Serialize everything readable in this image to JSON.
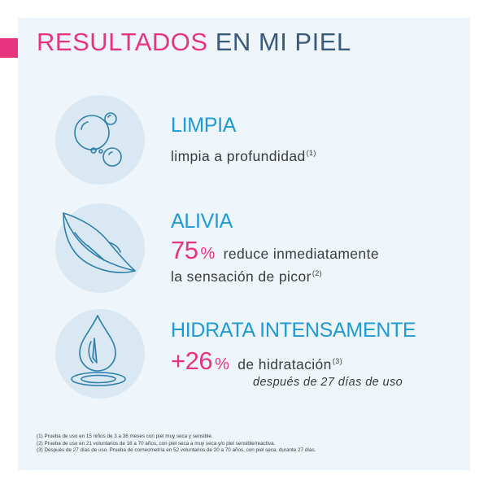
{
  "colors": {
    "accent_pink": "#e8347f",
    "heading_blue": "#1e9ad6",
    "title_navy": "#3a5a7c",
    "panel_bg": "#eef6fb",
    "icon_circle_bg": "#d9e8f2",
    "icon_stroke": "#2e7fab"
  },
  "title": {
    "word1": "RESULTADOS",
    "word2": "EN MI PIEL"
  },
  "sections": [
    {
      "icon": "bubbles-icon",
      "heading": "LIMPIA",
      "text": "limpia a profundidad",
      "note": "(1)"
    },
    {
      "icon": "feather-icon",
      "heading": "ALIVIA",
      "stat": "75",
      "stat_unit": "%",
      "text_line1": "reduce inmediatamente",
      "text_line2": "la sensación de picor",
      "note": "(2)"
    },
    {
      "icon": "water-drop-icon",
      "heading": "HIDRATA INTENSAMENTE",
      "stat": "+26",
      "stat_unit": "%",
      "text_line1": "de hidratación",
      "note": "(3)",
      "italic_line": "después de 27 días de uso"
    }
  ],
  "footnotes": [
    "(1) Prueba de uso en 15 niños de 3 a 36 meses con piel muy seca y sensible.",
    "(2) Prueba de uso en 21 voluntarios de 18 a 70 años, con piel seca a muy seca y/o piel sensible/reactiva.",
    "(3) Después de 27 días de uso. Prueba de corneometría en 52 voluntarios de 20 a 70 años, con piel seca, durante 27 días."
  ]
}
